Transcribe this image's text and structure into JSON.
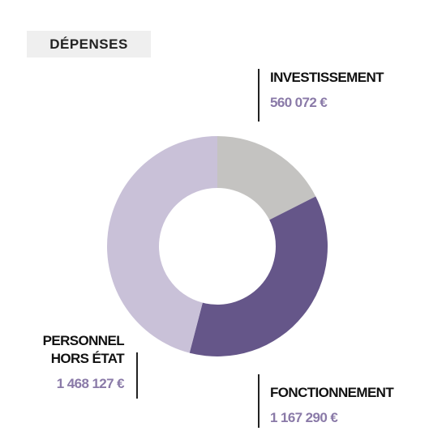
{
  "chart_data": {
    "type": "donut",
    "title": "DÉPENSES",
    "categories": [
      "INVESTISSEMENT",
      "FONCTIONNEMENT",
      "PERSONNEL HORS ÉTAT"
    ],
    "values": [
      560072,
      1167290,
      1468127
    ],
    "value_labels": [
      "560 072 €",
      "1 167 290 €",
      "1 468 127 €"
    ],
    "colors": [
      "#c4c3c1",
      "#655689",
      "#c9c1d8"
    ]
  }
}
